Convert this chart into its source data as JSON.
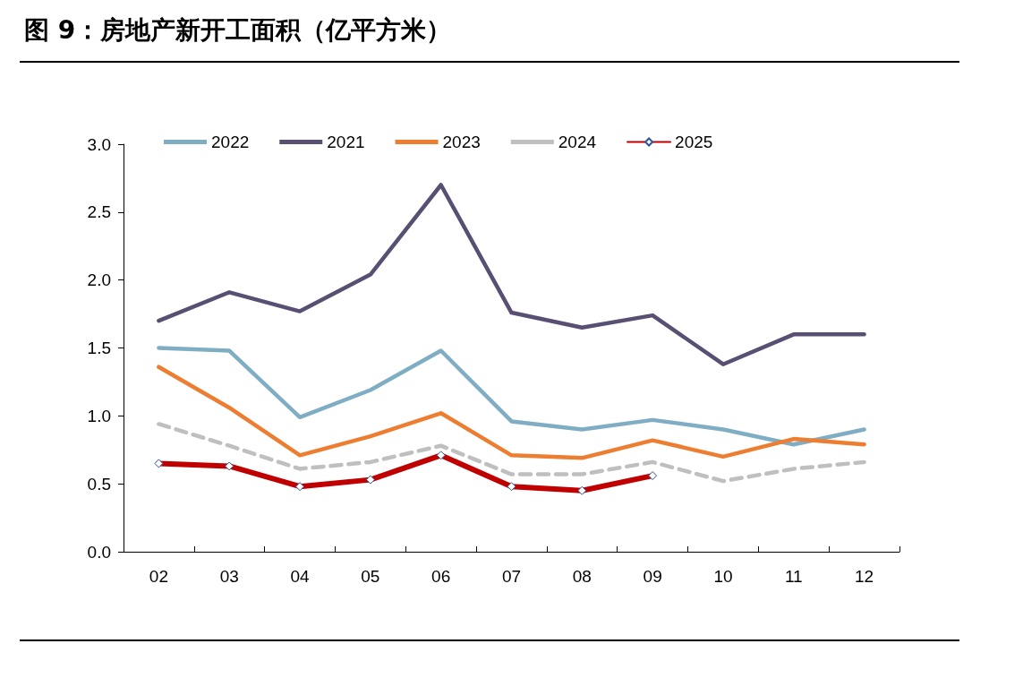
{
  "chart_data": {
    "type": "line",
    "title": "图 9：房地产新开工面积（亿平方米）",
    "categories": [
      "02",
      "03",
      "04",
      "05",
      "06",
      "07",
      "08",
      "09",
      "10",
      "11",
      "12"
    ],
    "series": [
      {
        "name": "2022",
        "color": "#7fadc3",
        "values": [
          1.5,
          1.48,
          0.99,
          1.19,
          1.48,
          0.96,
          0.9,
          0.97,
          0.9,
          0.79,
          0.9
        ]
      },
      {
        "name": "2021",
        "color": "#584f72",
        "values": [
          1.7,
          1.91,
          1.77,
          2.04,
          2.7,
          1.76,
          1.65,
          1.74,
          1.38,
          1.6,
          1.6
        ]
      },
      {
        "name": "2023",
        "color": "#ed7d31",
        "values": [
          1.36,
          1.06,
          0.71,
          0.85,
          1.02,
          0.71,
          0.69,
          0.82,
          0.7,
          0.83,
          0.79
        ]
      },
      {
        "name": "2024",
        "color": "#bfbfbf",
        "line_style": "dashed",
        "values": [
          0.94,
          0.78,
          0.61,
          0.66,
          0.78,
          0.57,
          0.57,
          0.66,
          0.52,
          0.61,
          0.66
        ]
      },
      {
        "name": "2025",
        "color": "#c00000",
        "marker": "diamond",
        "values": [
          0.65,
          0.63,
          0.48,
          0.53,
          0.71,
          0.48,
          0.45,
          0.56,
          null,
          null,
          null
        ]
      }
    ],
    "ylim": [
      0,
      3
    ],
    "yticks": [
      {
        "value": 0,
        "label": "0.0"
      },
      {
        "value": 0.5,
        "label": "0.5"
      },
      {
        "value": 1,
        "label": "1.0"
      },
      {
        "value": 1.5,
        "label": "1.5"
      },
      {
        "value": 2,
        "label": "2.0"
      },
      {
        "value": 2.5,
        "label": "2.5"
      },
      {
        "value": 3,
        "label": "3.0"
      }
    ],
    "grid": false,
    "legend": "top"
  }
}
